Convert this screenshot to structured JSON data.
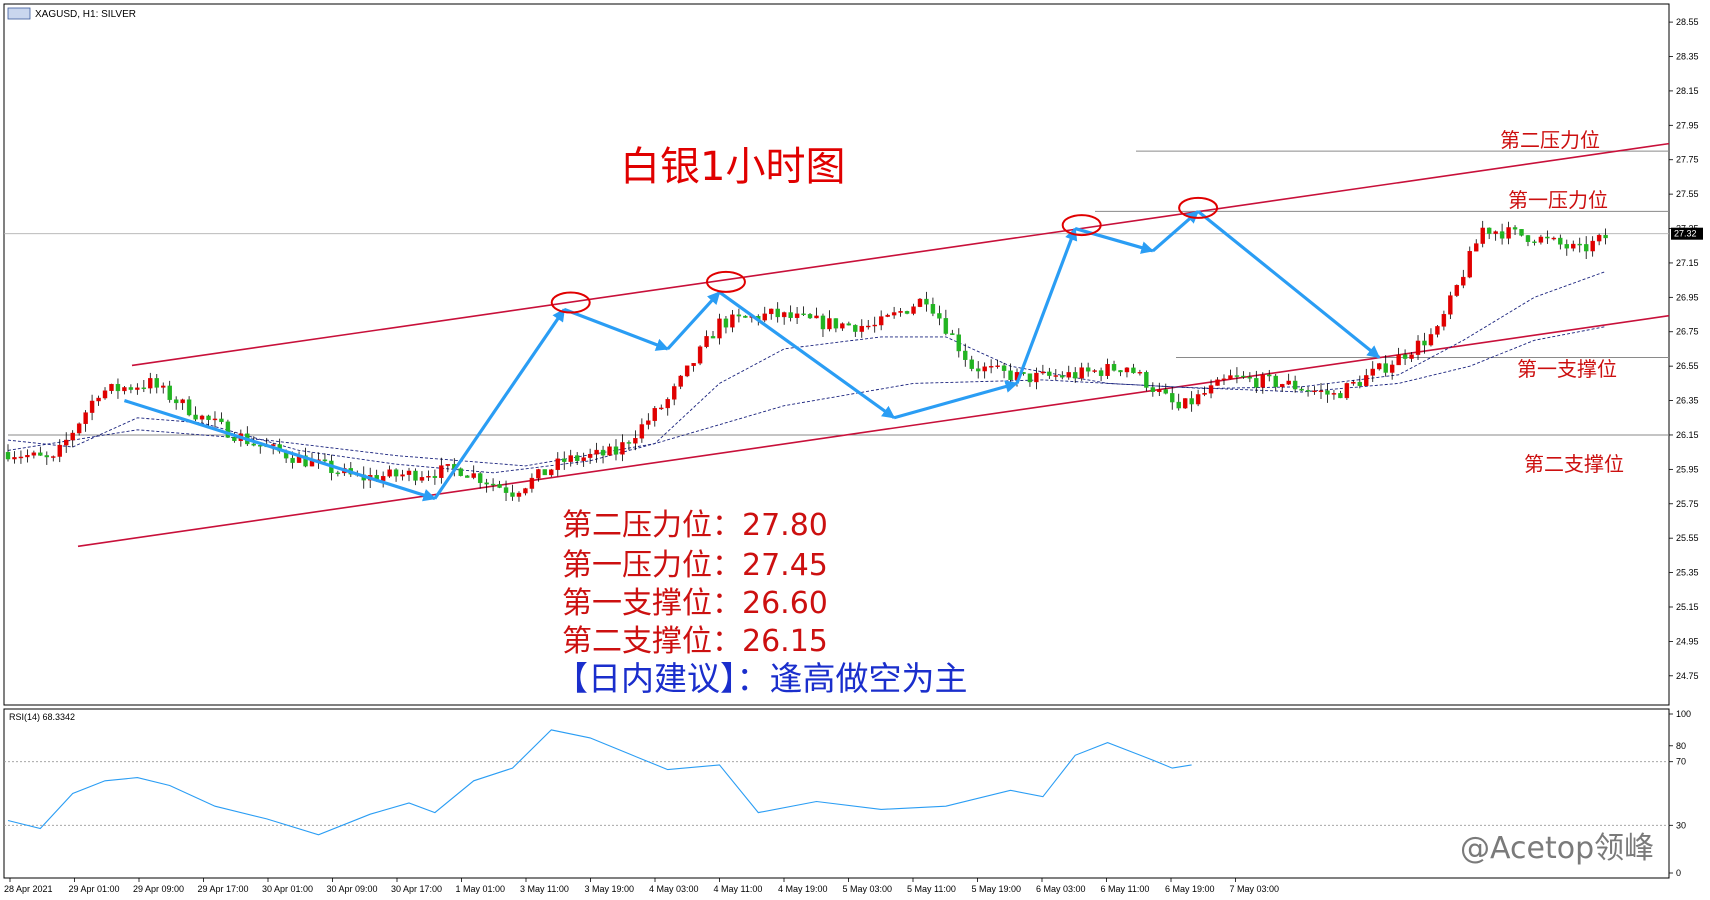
{
  "window": {
    "symbol_label": "XAGUSD, H1:  SILVER",
    "rsi_label": "RSI(14) 68.3342",
    "watermark": "@Acetop领峰"
  },
  "annotations": {
    "title": "白银1小时图",
    "levels": [
      {
        "label": "第二压力位",
        "value": 27.8
      },
      {
        "label": "第一压力位",
        "value": 27.45
      },
      {
        "label": "第一支撑位",
        "value": 26.6
      },
      {
        "label": "第二支撑位",
        "value": 26.15
      }
    ],
    "level_lines_text": [
      "第二压力位：27.80",
      "第一压力位：27.45",
      "第一支撑位：26.60",
      "第二支撑位：26.15"
    ],
    "advice": "【日内建议】：逢高做空为主"
  },
  "chart_data": [
    {
      "type": "candlestick",
      "symbol": "XAGUSD",
      "timeframe": "H1",
      "ylim": [
        24.65,
        28.6
      ],
      "y_ticks": [
        "28.55",
        "28.35",
        "28.15",
        "27.95",
        "27.75",
        "27.55",
        "27.35",
        "27.15",
        "26.95",
        "26.75",
        "26.55",
        "26.35",
        "26.15",
        "25.95",
        "25.75",
        "25.55",
        "25.35",
        "25.15",
        "24.95",
        "24.75"
      ],
      "current_price": "27.32",
      "x_ticks": [
        "28 Apr 2021",
        "29 Apr 01:00",
        "29 Apr 09:00",
        "29 Apr 17:00",
        "30 Apr 01:00",
        "30 Apr 09:00",
        "30 Apr 17:00",
        "1 May 01:00",
        "3 May 11:00",
        "3 May 19:00",
        "4 May 03:00",
        "4 May 11:00",
        "4 May 19:00",
        "5 May 03:00",
        "5 May 11:00",
        "5 May 19:00",
        "6 May 03:00",
        "6 May 11:00",
        "6 May 19:00",
        "7 May 03:00"
      ],
      "close_path": [
        [
          0,
          26.05
        ],
        [
          7,
          26.0
        ],
        [
          14,
          26.4
        ],
        [
          22,
          26.45
        ],
        [
          30,
          26.25
        ],
        [
          38,
          26.1
        ],
        [
          46,
          26.0
        ],
        [
          54,
          25.9
        ],
        [
          62,
          25.92
        ],
        [
          70,
          25.95
        ],
        [
          78,
          25.82
        ],
        [
          86,
          26.0
        ],
        [
          94,
          26.05
        ],
        [
          102,
          26.35
        ],
        [
          110,
          26.8
        ],
        [
          118,
          26.85
        ],
        [
          126,
          26.8
        ],
        [
          134,
          26.78
        ],
        [
          142,
          26.95
        ],
        [
          149,
          26.55
        ],
        [
          157,
          26.48
        ],
        [
          165,
          26.5
        ],
        [
          173,
          26.55
        ],
        [
          181,
          26.3
        ],
        [
          189,
          26.48
        ],
        [
          197,
          26.45
        ],
        [
          205,
          26.38
        ],
        [
          213,
          26.55
        ],
        [
          221,
          26.75
        ],
        [
          228,
          27.35
        ],
        [
          236,
          27.3
        ],
        [
          243,
          27.22
        ],
        [
          247,
          27.3
        ]
      ],
      "ma_fast": [
        [
          0,
          26.12
        ],
        [
          10,
          26.08
        ],
        [
          20,
          26.25
        ],
        [
          30,
          26.22
        ],
        [
          45,
          26.06
        ],
        [
          60,
          25.98
        ],
        [
          75,
          25.93
        ],
        [
          90,
          26.0
        ],
        [
          100,
          26.1
        ],
        [
          110,
          26.45
        ],
        [
          120,
          26.65
        ],
        [
          135,
          26.72
        ],
        [
          145,
          26.72
        ],
        [
          155,
          26.55
        ],
        [
          170,
          26.45
        ],
        [
          185,
          26.42
        ],
        [
          200,
          26.43
        ],
        [
          215,
          26.5
        ],
        [
          225,
          26.7
        ],
        [
          236,
          26.95
        ],
        [
          247,
          27.1
        ]
      ],
      "ma_slow": [
        [
          0,
          26.06
        ],
        [
          20,
          26.18
        ],
        [
          40,
          26.12
        ],
        [
          60,
          26.03
        ],
        [
          80,
          25.97
        ],
        [
          100,
          26.1
        ],
        [
          120,
          26.32
        ],
        [
          140,
          26.45
        ],
        [
          160,
          26.47
        ],
        [
          180,
          26.43
        ],
        [
          200,
          26.4
        ],
        [
          215,
          26.45
        ],
        [
          226,
          26.55
        ],
        [
          236,
          26.7
        ],
        [
          247,
          26.78
        ]
      ],
      "channel": {
        "upper": [
          [
            0,
            26.45
          ],
          [
            258,
            27.85
          ]
        ],
        "lower": [
          [
            -8,
            25.4
          ],
          [
            258,
            26.85
          ]
        ]
      },
      "horizontal_levels": [
        27.8,
        27.45,
        26.6,
        26.15
      ],
      "arrows": [
        [
          [
            18,
            26.35
          ],
          [
            66,
            25.78
          ]
        ],
        [
          [
            66,
            25.78
          ],
          [
            86,
            26.88
          ]
        ],
        [
          [
            86,
            26.88
          ],
          [
            102,
            26.65
          ]
        ],
        [
          [
            102,
            26.65
          ],
          [
            110,
            26.98
          ]
        ],
        [
          [
            110,
            26.98
          ],
          [
            137,
            26.25
          ]
        ],
        [
          [
            137,
            26.25
          ],
          [
            156,
            26.45
          ]
        ],
        [
          [
            156,
            26.45
          ],
          [
            165,
            27.35
          ]
        ],
        [
          [
            165,
            27.35
          ],
          [
            177,
            27.22
          ]
        ],
        [
          [
            177,
            27.22
          ],
          [
            184,
            27.45
          ]
        ],
        [
          [
            184,
            27.45
          ],
          [
            212,
            26.6
          ]
        ]
      ],
      "circles": [
        [
          87,
          26.92
        ],
        [
          111,
          27.04
        ],
        [
          166,
          27.37
        ],
        [
          184,
          27.47
        ]
      ]
    },
    {
      "type": "line",
      "name": "RSI(14)",
      "ylim": [
        0,
        100
      ],
      "y_ticks": [
        "100",
        "80",
        "70",
        "30",
        "0"
      ],
      "levels": [
        70,
        30
      ],
      "last_value": 68.3342,
      "points": [
        [
          0,
          33
        ],
        [
          5,
          28
        ],
        [
          10,
          50
        ],
        [
          15,
          58
        ],
        [
          20,
          60
        ],
        [
          25,
          55
        ],
        [
          32,
          42
        ],
        [
          40,
          34
        ],
        [
          48,
          24
        ],
        [
          56,
          37
        ],
        [
          62,
          44
        ],
        [
          66,
          38
        ],
        [
          72,
          58
        ],
        [
          78,
          66
        ],
        [
          84,
          90
        ],
        [
          90,
          85
        ],
        [
          96,
          75
        ],
        [
          102,
          65
        ],
        [
          110,
          68
        ],
        [
          116,
          38
        ],
        [
          125,
          45
        ],
        [
          135,
          40
        ],
        [
          145,
          42
        ],
        [
          155,
          52
        ],
        [
          160,
          48
        ],
        [
          165,
          74
        ],
        [
          170,
          82
        ],
        [
          177,
          71
        ],
        [
          180,
          66
        ],
        [
          183,
          68
        ]
      ]
    }
  ]
}
